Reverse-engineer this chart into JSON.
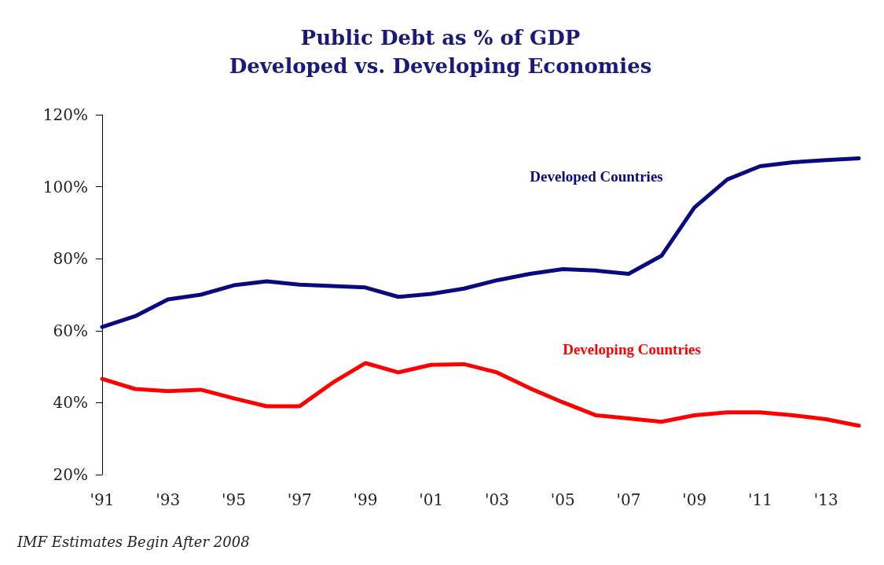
{
  "chart_data": {
    "type": "line",
    "title": "Public Debt as % of GDP",
    "subtitle": "Developed vs. Developing Economies",
    "categories": [
      "'91",
      null,
      "'93",
      null,
      "'95",
      null,
      "'97",
      null,
      "'99",
      null,
      "'01",
      null,
      "'03",
      null,
      "'05",
      null,
      "'07",
      null,
      "'09",
      null,
      "'11",
      null,
      "'13",
      null
    ],
    "series": [
      {
        "name": "Developed Countries",
        "color": "#0a0a80",
        "values": [
          61,
          64,
          68.7,
          70,
          72.6,
          73.7,
          72.8,
          72.4,
          72,
          69.4,
          70.2,
          71.7,
          74,
          75.8,
          77.1,
          76.7,
          75.8,
          80.8,
          94.2,
          102,
          105.7,
          106.8,
          107.4,
          107.9
        ]
      },
      {
        "name": "Developing Countries",
        "color": "#ff0000",
        "values": [
          46.6,
          43.8,
          43.2,
          43.6,
          41.2,
          39,
          39,
          45.5,
          51,
          48.4,
          50.5,
          50.7,
          48.4,
          44,
          40.1,
          36.5,
          35.6,
          34.7,
          36.5,
          37.3,
          37.3,
          36.5,
          35.4,
          33.6
        ]
      }
    ],
    "ylim": [
      20,
      120
    ],
    "yticks": [
      {
        "value": 20,
        "label": "20%"
      },
      {
        "value": 40,
        "label": "40%"
      },
      {
        "value": 60,
        "label": "60%"
      },
      {
        "value": 80,
        "label": "80%"
      },
      {
        "value": 100,
        "label": "100%"
      },
      {
        "value": 120,
        "label": "120%"
      }
    ],
    "grid": false,
    "legend": false,
    "marker": "none",
    "line_style": "solid",
    "annotations": [
      "IMF Estimates Begin After 2008"
    ]
  }
}
